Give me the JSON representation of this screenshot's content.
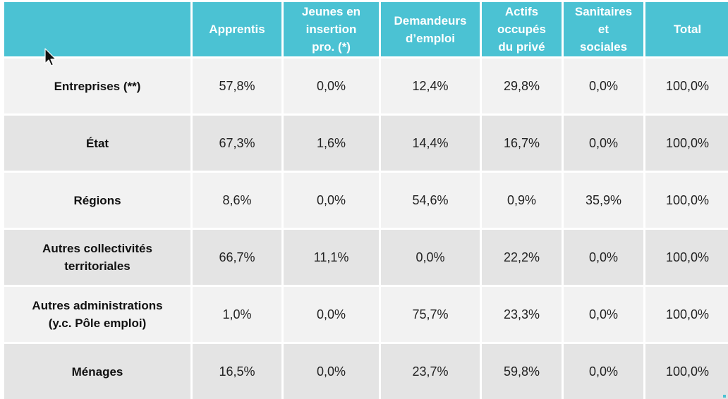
{
  "header": {
    "corner": "",
    "columns": [
      "Apprentis",
      "Jeunes en\ninsertion\npro. (*)",
      "Demandeurs\nd’emploi",
      "Actifs\noccupés\ndu privé",
      "Sanitaires\net\nsociales",
      "Total"
    ]
  },
  "rows": [
    {
      "label": "Entreprises (**)",
      "values": [
        "57,8%",
        "0,0%",
        "12,4%",
        "29,8%",
        "0,0%",
        "100,0%"
      ]
    },
    {
      "label": "État",
      "values": [
        "67,3%",
        "1,6%",
        "14,4%",
        "16,7%",
        "0,0%",
        "100,0%"
      ]
    },
    {
      "label": "Régions",
      "values": [
        "8,6%",
        "0,0%",
        "54,6%",
        "0,9%",
        "35,9%",
        "100,0%"
      ]
    },
    {
      "label": "Autres collectivités\nterritoriales",
      "values": [
        "66,7%",
        "11,1%",
        "0,0%",
        "22,2%",
        "0,0%",
        "100,0%"
      ]
    },
    {
      "label": "Autres administrations\n(y.c. Pôle emploi)",
      "values": [
        "1,0%",
        "0,0%",
        "75,7%",
        "23,3%",
        "0,0%",
        "100,0%"
      ]
    },
    {
      "label": "Ménages",
      "values": [
        "16,5%",
        "0,0%",
        "23,7%",
        "59,8%",
        "0,0%",
        "100,0%"
      ]
    }
  ],
  "colors": {
    "header_bg": "#4bc2d3",
    "row_light": "#f2f2f2",
    "row_dark": "#e4e4e4"
  },
  "icons": {
    "pointer": "mouse-pointer-icon"
  }
}
